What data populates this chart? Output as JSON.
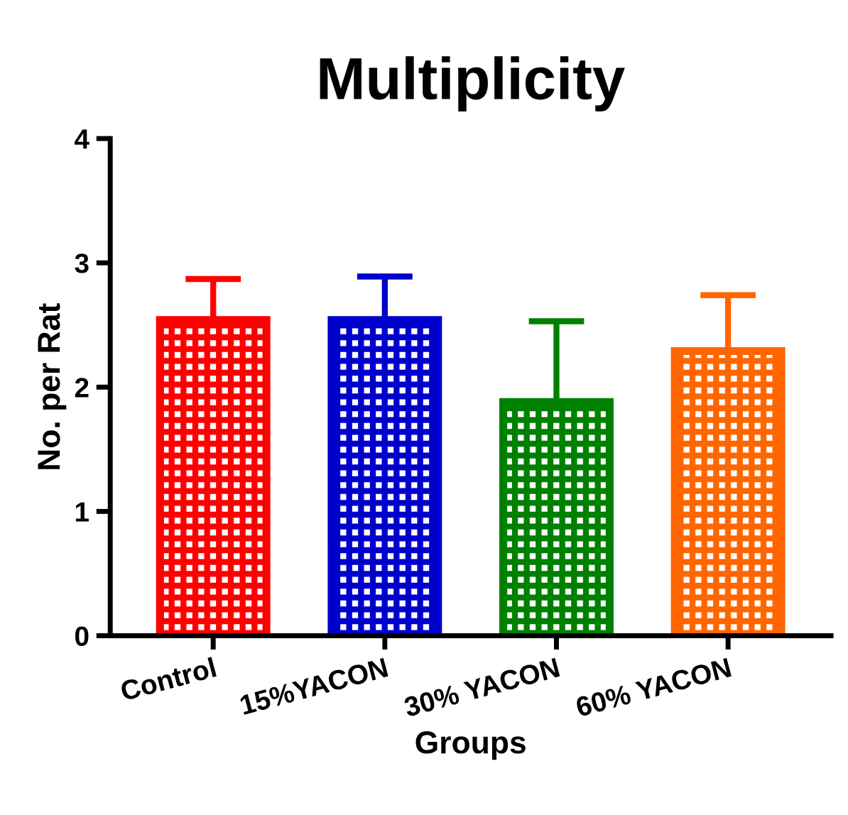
{
  "chart_data": {
    "type": "bar",
    "title": "Multiplicity",
    "xlabel": "Groups",
    "ylabel": "No. per Rat",
    "categories": [
      "Control",
      "15%YACON",
      "30% YACON",
      "60% YACON"
    ],
    "values": [
      2.54,
      2.54,
      1.88,
      2.29
    ],
    "errors": [
      [
        2.54,
        2.87
      ],
      [
        2.54,
        2.89
      ],
      [
        1.88,
        2.53
      ],
      [
        2.29,
        2.74
      ]
    ],
    "colors": [
      "#ff0000",
      "#0000cc",
      "#008000",
      "#ff6600"
    ],
    "ylim": [
      0,
      4
    ],
    "yticks": [
      0,
      1,
      2,
      3,
      4
    ],
    "grid": false
  }
}
